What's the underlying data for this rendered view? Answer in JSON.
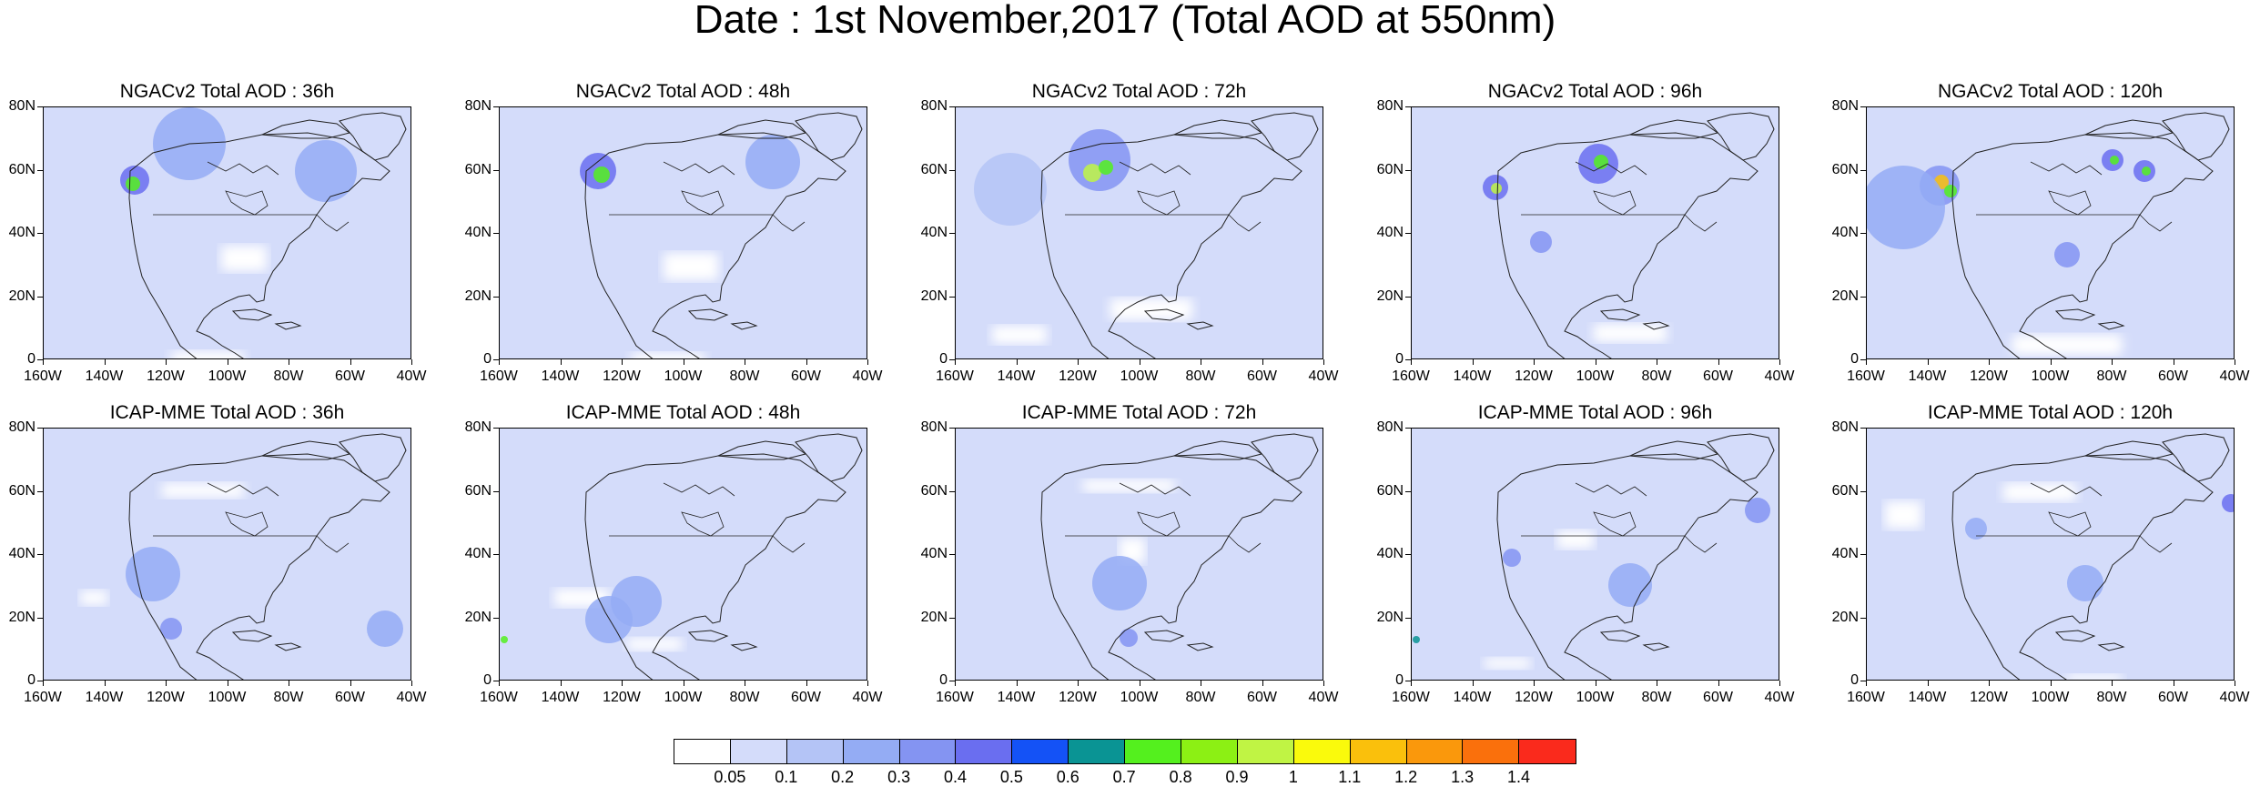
{
  "title": "Date : 1st November,2017 (Total AOD at 550nm)",
  "panels": [
    {
      "title": "NGACv2 Total AOD : 36h"
    },
    {
      "title": "NGACv2 Total AOD : 48h"
    },
    {
      "title": "NGACv2 Total AOD : 72h"
    },
    {
      "title": "NGACv2 Total AOD : 96h"
    },
    {
      "title": "NGACv2 Total AOD : 120h"
    },
    {
      "title": "ICAP-MME Total AOD : 36h"
    },
    {
      "title": "ICAP-MME Total AOD : 48h"
    },
    {
      "title": "ICAP-MME Total AOD : 72h"
    },
    {
      "title": "ICAP-MME Total AOD : 96h"
    },
    {
      "title": "ICAP-MME Total AOD : 120h"
    }
  ],
  "axes": {
    "lat_ticks": [
      "80N",
      "60N",
      "40N",
      "20N",
      "0"
    ],
    "lon_ticks": [
      "160W",
      "140W",
      "120W",
      "100W",
      "80W",
      "60W",
      "40W"
    ]
  },
  "colorbar": {
    "colors": [
      "#ffffff",
      "#d4dcfa",
      "#b4c4f6",
      "#94acf4",
      "#8494f2",
      "#6a6ef0",
      "#1452f6",
      "#0a9494",
      "#54f01e",
      "#8cf014",
      "#c0f444",
      "#fafa0c",
      "#fac00c",
      "#fa980c",
      "#fa700c",
      "#fa2a1c"
    ],
    "labels": [
      "0.05",
      "0.1",
      "0.2",
      "0.3",
      "0.4",
      "0.5",
      "0.6",
      "0.7",
      "0.8",
      "0.9",
      "1",
      "1.1",
      "1.2",
      "1.3",
      "1.4"
    ]
  }
}
